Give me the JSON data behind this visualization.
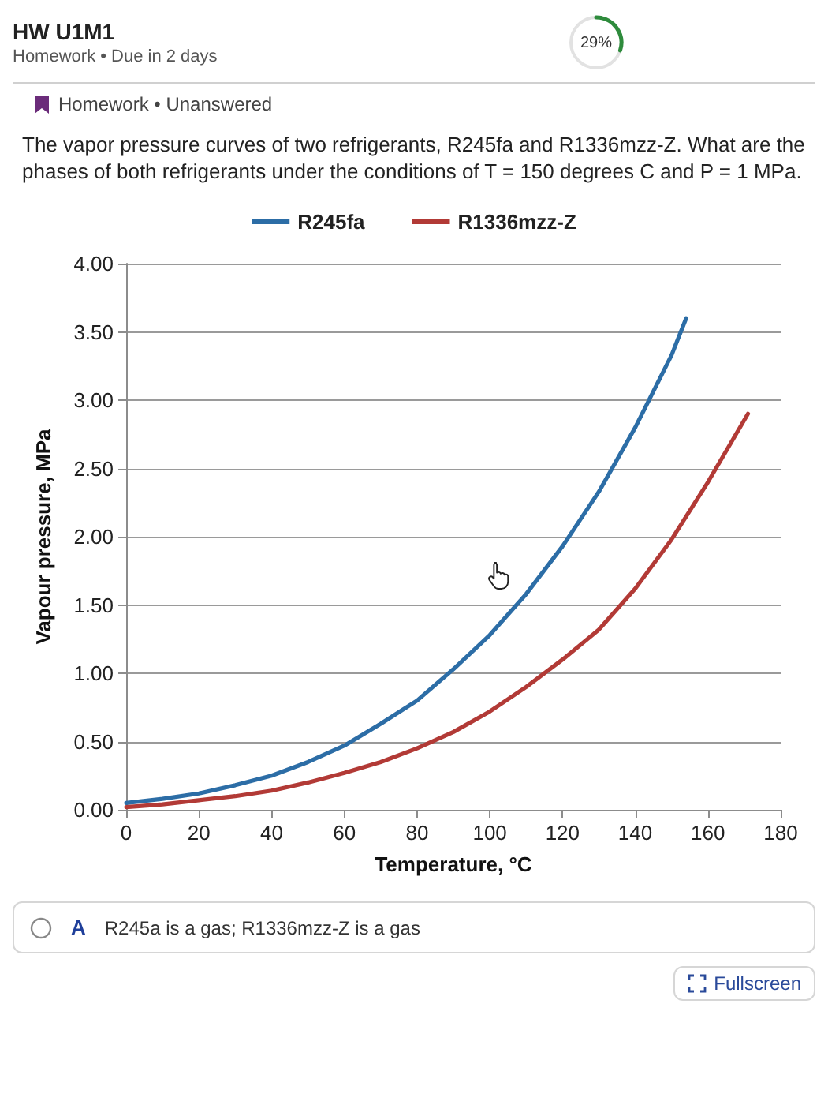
{
  "chart_data": {
    "type": "line",
    "title": "The vapor pressure curves of two refrigerants, R245fa and R1336mzz-Z. What are the phases of both refrigerants under the conditions of T = 150 degrees C and P = 1 MPa.",
    "xlabel": "Temperature, °C",
    "ylabel": "Vapour pressure, MPa",
    "annotations": [
      "HW U1M1",
      "Homework • Due in 2 days",
      "29%",
      "Homework • Unanswered",
      "A",
      "R245a is a gas; R1336mzz-Z is a gas",
      "Fullscreen"
    ],
    "series": [
      {
        "name": "R245fa",
        "color": "#2c6da6",
        "x": [
          0,
          10,
          20,
          30,
          40,
          50,
          60,
          70,
          80,
          90,
          100,
          110,
          120,
          130,
          140,
          150,
          154
        ],
        "values": [
          0.05,
          0.08,
          0.12,
          0.18,
          0.25,
          0.35,
          0.47,
          0.63,
          0.8,
          1.03,
          1.28,
          1.58,
          1.93,
          2.33,
          2.8,
          3.33,
          3.6
        ]
      },
      {
        "name": "R1336mzz-Z",
        "color": "#b23a36",
        "x": [
          0,
          10,
          20,
          30,
          40,
          50,
          60,
          70,
          80,
          90,
          100,
          110,
          120,
          130,
          140,
          150,
          160,
          171
        ],
        "values": [
          0.02,
          0.04,
          0.07,
          0.1,
          0.14,
          0.2,
          0.27,
          0.35,
          0.45,
          0.57,
          0.72,
          0.9,
          1.1,
          1.32,
          1.62,
          1.98,
          2.4,
          2.9
        ]
      }
    ],
    "xlim": [
      0,
      180
    ],
    "xticks": [
      0,
      20,
      40,
      60,
      80,
      100,
      120,
      140,
      160,
      180
    ],
    "ylim": [
      0,
      4
    ],
    "yticks": [
      {
        "value": 0,
        "label": "0.00"
      },
      {
        "value": 0.5,
        "label": "0.50"
      },
      {
        "value": 1,
        "label": "1.00"
      },
      {
        "value": 1.5,
        "label": "1.50"
      },
      {
        "value": 2,
        "label": "2.00"
      },
      {
        "value": 2.5,
        "label": "2.50"
      },
      {
        "value": 3,
        "label": "3.00"
      },
      {
        "value": 3.5,
        "label": "3.50"
      },
      {
        "value": 4,
        "label": "4.00"
      }
    ],
    "grid": "y",
    "legend": "top",
    "marker": "none",
    "line_style": "solid"
  }
}
